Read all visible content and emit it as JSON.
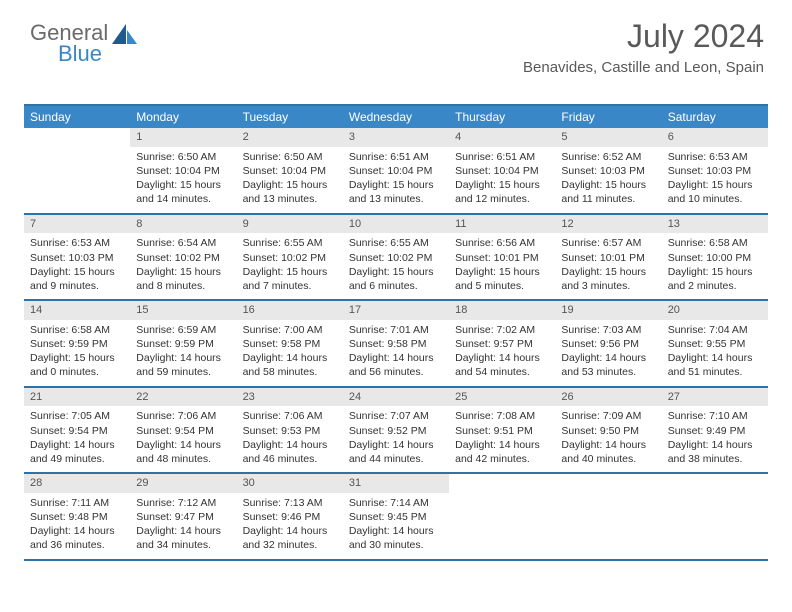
{
  "logo": {
    "text1": "General",
    "text2": "Blue"
  },
  "title": "July 2024",
  "location": "Benavides, Castille and Leon, Spain",
  "accent_color": "#3a87c8",
  "border_color": "#2f72a8",
  "daynum_bg": "#e8e8e8",
  "weekdays": [
    "Sunday",
    "Monday",
    "Tuesday",
    "Wednesday",
    "Thursday",
    "Friday",
    "Saturday"
  ],
  "weeks": [
    [
      {
        "n": "",
        "l": [
          "",
          "",
          "",
          ""
        ]
      },
      {
        "n": "1",
        "l": [
          "Sunrise: 6:50 AM",
          "Sunset: 10:04 PM",
          "Daylight: 15 hours",
          "and 14 minutes."
        ]
      },
      {
        "n": "2",
        "l": [
          "Sunrise: 6:50 AM",
          "Sunset: 10:04 PM",
          "Daylight: 15 hours",
          "and 13 minutes."
        ]
      },
      {
        "n": "3",
        "l": [
          "Sunrise: 6:51 AM",
          "Sunset: 10:04 PM",
          "Daylight: 15 hours",
          "and 13 minutes."
        ]
      },
      {
        "n": "4",
        "l": [
          "Sunrise: 6:51 AM",
          "Sunset: 10:04 PM",
          "Daylight: 15 hours",
          "and 12 minutes."
        ]
      },
      {
        "n": "5",
        "l": [
          "Sunrise: 6:52 AM",
          "Sunset: 10:03 PM",
          "Daylight: 15 hours",
          "and 11 minutes."
        ]
      },
      {
        "n": "6",
        "l": [
          "Sunrise: 6:53 AM",
          "Sunset: 10:03 PM",
          "Daylight: 15 hours",
          "and 10 minutes."
        ]
      }
    ],
    [
      {
        "n": "7",
        "l": [
          "Sunrise: 6:53 AM",
          "Sunset: 10:03 PM",
          "Daylight: 15 hours",
          "and 9 minutes."
        ]
      },
      {
        "n": "8",
        "l": [
          "Sunrise: 6:54 AM",
          "Sunset: 10:02 PM",
          "Daylight: 15 hours",
          "and 8 minutes."
        ]
      },
      {
        "n": "9",
        "l": [
          "Sunrise: 6:55 AM",
          "Sunset: 10:02 PM",
          "Daylight: 15 hours",
          "and 7 minutes."
        ]
      },
      {
        "n": "10",
        "l": [
          "Sunrise: 6:55 AM",
          "Sunset: 10:02 PM",
          "Daylight: 15 hours",
          "and 6 minutes."
        ]
      },
      {
        "n": "11",
        "l": [
          "Sunrise: 6:56 AM",
          "Sunset: 10:01 PM",
          "Daylight: 15 hours",
          "and 5 minutes."
        ]
      },
      {
        "n": "12",
        "l": [
          "Sunrise: 6:57 AM",
          "Sunset: 10:01 PM",
          "Daylight: 15 hours",
          "and 3 minutes."
        ]
      },
      {
        "n": "13",
        "l": [
          "Sunrise: 6:58 AM",
          "Sunset: 10:00 PM",
          "Daylight: 15 hours",
          "and 2 minutes."
        ]
      }
    ],
    [
      {
        "n": "14",
        "l": [
          "Sunrise: 6:58 AM",
          "Sunset: 9:59 PM",
          "Daylight: 15 hours",
          "and 0 minutes."
        ]
      },
      {
        "n": "15",
        "l": [
          "Sunrise: 6:59 AM",
          "Sunset: 9:59 PM",
          "Daylight: 14 hours",
          "and 59 minutes."
        ]
      },
      {
        "n": "16",
        "l": [
          "Sunrise: 7:00 AM",
          "Sunset: 9:58 PM",
          "Daylight: 14 hours",
          "and 58 minutes."
        ]
      },
      {
        "n": "17",
        "l": [
          "Sunrise: 7:01 AM",
          "Sunset: 9:58 PM",
          "Daylight: 14 hours",
          "and 56 minutes."
        ]
      },
      {
        "n": "18",
        "l": [
          "Sunrise: 7:02 AM",
          "Sunset: 9:57 PM",
          "Daylight: 14 hours",
          "and 54 minutes."
        ]
      },
      {
        "n": "19",
        "l": [
          "Sunrise: 7:03 AM",
          "Sunset: 9:56 PM",
          "Daylight: 14 hours",
          "and 53 minutes."
        ]
      },
      {
        "n": "20",
        "l": [
          "Sunrise: 7:04 AM",
          "Sunset: 9:55 PM",
          "Daylight: 14 hours",
          "and 51 minutes."
        ]
      }
    ],
    [
      {
        "n": "21",
        "l": [
          "Sunrise: 7:05 AM",
          "Sunset: 9:54 PM",
          "Daylight: 14 hours",
          "and 49 minutes."
        ]
      },
      {
        "n": "22",
        "l": [
          "Sunrise: 7:06 AM",
          "Sunset: 9:54 PM",
          "Daylight: 14 hours",
          "and 48 minutes."
        ]
      },
      {
        "n": "23",
        "l": [
          "Sunrise: 7:06 AM",
          "Sunset: 9:53 PM",
          "Daylight: 14 hours",
          "and 46 minutes."
        ]
      },
      {
        "n": "24",
        "l": [
          "Sunrise: 7:07 AM",
          "Sunset: 9:52 PM",
          "Daylight: 14 hours",
          "and 44 minutes."
        ]
      },
      {
        "n": "25",
        "l": [
          "Sunrise: 7:08 AM",
          "Sunset: 9:51 PM",
          "Daylight: 14 hours",
          "and 42 minutes."
        ]
      },
      {
        "n": "26",
        "l": [
          "Sunrise: 7:09 AM",
          "Sunset: 9:50 PM",
          "Daylight: 14 hours",
          "and 40 minutes."
        ]
      },
      {
        "n": "27",
        "l": [
          "Sunrise: 7:10 AM",
          "Sunset: 9:49 PM",
          "Daylight: 14 hours",
          "and 38 minutes."
        ]
      }
    ],
    [
      {
        "n": "28",
        "l": [
          "Sunrise: 7:11 AM",
          "Sunset: 9:48 PM",
          "Daylight: 14 hours",
          "and 36 minutes."
        ]
      },
      {
        "n": "29",
        "l": [
          "Sunrise: 7:12 AM",
          "Sunset: 9:47 PM",
          "Daylight: 14 hours",
          "and 34 minutes."
        ]
      },
      {
        "n": "30",
        "l": [
          "Sunrise: 7:13 AM",
          "Sunset: 9:46 PM",
          "Daylight: 14 hours",
          "and 32 minutes."
        ]
      },
      {
        "n": "31",
        "l": [
          "Sunrise: 7:14 AM",
          "Sunset: 9:45 PM",
          "Daylight: 14 hours",
          "and 30 minutes."
        ]
      },
      {
        "n": "",
        "l": [
          "",
          "",
          "",
          ""
        ]
      },
      {
        "n": "",
        "l": [
          "",
          "",
          "",
          ""
        ]
      },
      {
        "n": "",
        "l": [
          "",
          "",
          "",
          ""
        ]
      }
    ]
  ]
}
